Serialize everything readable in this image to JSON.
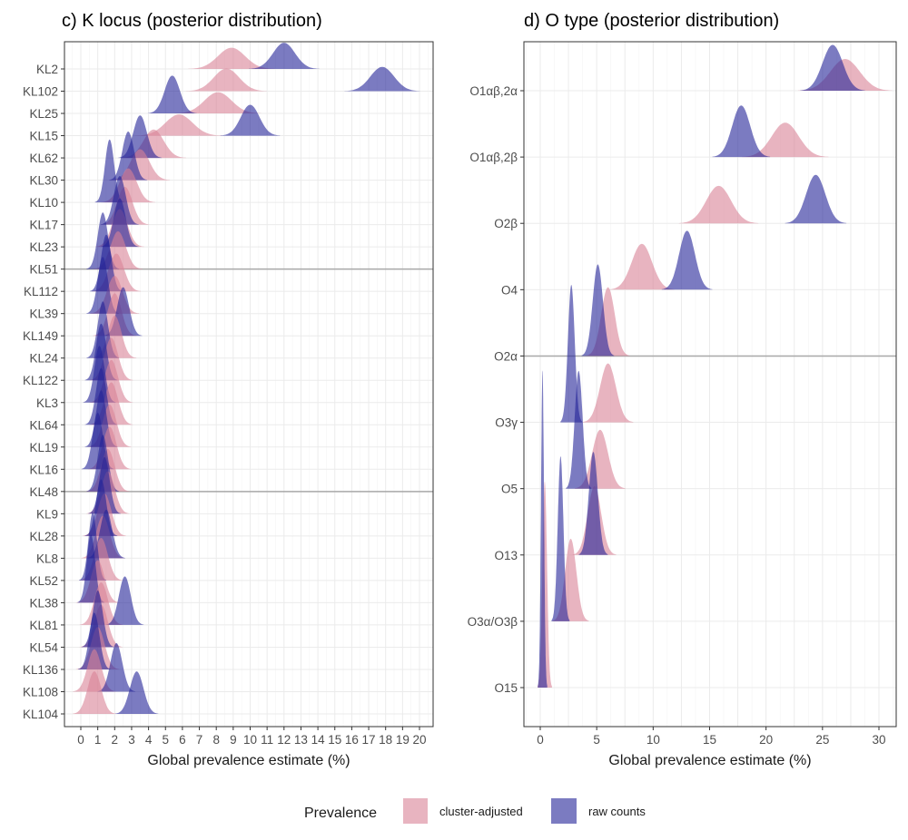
{
  "chart_data": [
    {
      "type": "ridgeline",
      "title": "c) K locus (posterior distribution)",
      "xlabel": "Global prevalence estimate (%)",
      "xlim": [
        0,
        20
      ],
      "xticks": [
        0,
        1,
        2,
        3,
        4,
        5,
        6,
        7,
        8,
        9,
        10,
        11,
        12,
        13,
        14,
        15,
        16,
        17,
        18,
        19,
        20
      ],
      "grid": true,
      "reference_lines_at": [
        "KL51",
        "KL48"
      ],
      "categories": [
        "KL2",
        "KL102",
        "KL25",
        "KL15",
        "KL62",
        "KL30",
        "KL10",
        "KL17",
        "KL23",
        "KL51",
        "KL112",
        "KL39",
        "KL149",
        "KL24",
        "KL122",
        "KL3",
        "KL64",
        "KL19",
        "KL16",
        "KL48",
        "KL9",
        "KL28",
        "KL8",
        "KL52",
        "KL38",
        "KL81",
        "KL54",
        "KL136",
        "KL108",
        "KL104"
      ],
      "series": [
        {
          "name": "cluster-adjusted",
          "color": "#d98296",
          "mean": [
            8.9,
            8.6,
            8.1,
            5.8,
            4.3,
            3.5,
            2.8,
            2.6,
            2.3,
            2.2,
            2.1,
            2.0,
            2.0,
            2.0,
            1.8,
            1.8,
            1.8,
            1.7,
            1.7,
            1.6,
            1.6,
            1.4,
            1.3,
            1.2,
            1.0,
            1.2,
            1.2,
            1.0,
            0.8,
            0.8
          ],
          "sd": [
            0.8,
            0.75,
            0.8,
            0.8,
            0.6,
            0.55,
            0.5,
            0.45,
            0.45,
            0.45,
            0.45,
            0.45,
            0.4,
            0.4,
            0.4,
            0.4,
            0.4,
            0.4,
            0.4,
            0.4,
            0.4,
            0.4,
            0.4,
            0.4,
            0.4,
            0.4,
            0.4,
            0.4,
            0.4,
            0.4
          ]
        },
        {
          "name": "raw counts",
          "color": "#232398",
          "mean": [
            12.0,
            17.8,
            5.4,
            10.0,
            3.5,
            2.8,
            1.7,
            2.3,
            2.3,
            1.3,
            1.5,
            1.3,
            2.5,
            1.3,
            1.2,
            1.1,
            1.2,
            1.2,
            1.0,
            1.3,
            1.4,
            1.2,
            1.5,
            0.7,
            0.6,
            2.6,
            1.0,
            0.8,
            2.1,
            3.3
          ],
          "sd": [
            0.65,
            0.7,
            0.45,
            0.55,
            0.4,
            0.35,
            0.27,
            0.35,
            0.35,
            0.3,
            0.3,
            0.3,
            0.35,
            0.3,
            0.3,
            0.3,
            0.3,
            0.3,
            0.3,
            0.3,
            0.3,
            0.3,
            0.35,
            0.25,
            0.25,
            0.35,
            0.3,
            0.3,
            0.35,
            0.4
          ]
        }
      ]
    },
    {
      "type": "ridgeline",
      "title": "d) O type (posterior distribution)",
      "xlabel": "Global prevalence estimate (%)",
      "xlim": [
        0,
        30
      ],
      "xticks": [
        0,
        5,
        10,
        15,
        20,
        25,
        30
      ],
      "grid": true,
      "reference_lines_at": [
        "O2α"
      ],
      "categories": [
        "O1αβ,2α",
        "O1αβ,2β",
        "O2β",
        "O4",
        "O2α",
        "O3γ",
        "O5",
        "O13",
        "O3α/O3β",
        "O15"
      ],
      "series": [
        {
          "name": "cluster-adjusted",
          "color": "#d98296",
          "mean": [
            27.0,
            21.7,
            15.8,
            9.0,
            6.0,
            6.0,
            5.3,
            4.8,
            2.7,
            0.4
          ],
          "sd": [
            1.3,
            1.2,
            1.1,
            0.9,
            0.6,
            0.7,
            0.7,
            0.6,
            0.5,
            0.2
          ]
        },
        {
          "name": "raw counts",
          "color": "#232398",
          "mean": [
            25.9,
            17.8,
            24.4,
            13.0,
            5.1,
            2.75,
            3.4,
            4.7,
            1.8,
            0.2
          ],
          "sd": [
            0.9,
            0.8,
            0.85,
            0.7,
            0.45,
            0.3,
            0.35,
            0.4,
            0.25,
            0.13
          ]
        }
      ]
    }
  ],
  "legend": {
    "title": "Prevalence",
    "items": [
      "cluster-adjusted",
      "raw counts"
    ],
    "position": "bottom"
  }
}
